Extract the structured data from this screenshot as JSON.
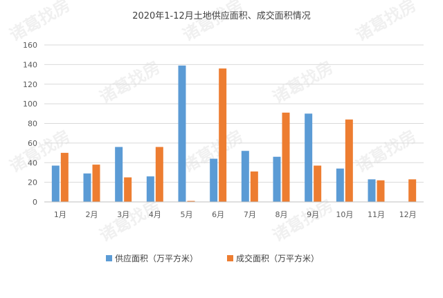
{
  "watermark": "诸葛找房",
  "chart_data": {
    "type": "bar",
    "title": "2020年1-12月土地供应面积、成交面积情况",
    "xlabel": "",
    "ylabel": "",
    "categories": [
      "1月",
      "2月",
      "3月",
      "4月",
      "5月",
      "6月",
      "7月",
      "8月",
      "9月",
      "10月",
      "11月",
      "12月"
    ],
    "ylim": [
      0,
      160
    ],
    "yticks": [
      0,
      20,
      40,
      60,
      80,
      100,
      120,
      140,
      160
    ],
    "grid": true,
    "legend_position": "bottom",
    "series": [
      {
        "name": "供应面积（万平方米）",
        "color": "#5b9bd5",
        "values": [
          37,
          29,
          56,
          26,
          139,
          44,
          52,
          46,
          90,
          34,
          23,
          0
        ]
      },
      {
        "name": "成交面积（万平方米）",
        "color": "#ed7d31",
        "values": [
          50,
          38,
          25,
          56,
          1,
          136,
          31,
          91,
          37,
          84,
          22,
          23
        ]
      }
    ]
  }
}
